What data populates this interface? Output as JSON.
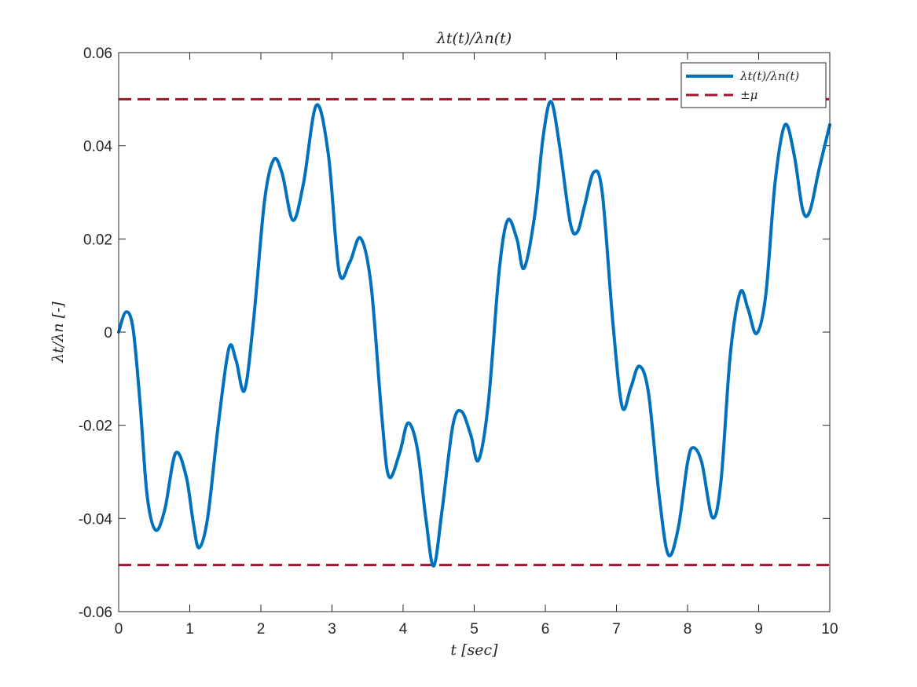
{
  "chart_data": {
    "type": "line",
    "title": "λt(t)/λn(t)",
    "xlabel": "t [sec]",
    "ylabel": "λt/λn [-]",
    "xlim": [
      0,
      10
    ],
    "ylim": [
      -0.06,
      0.06
    ],
    "x_ticks": [
      0,
      1,
      2,
      3,
      4,
      5,
      6,
      7,
      8,
      9,
      10
    ],
    "y_ticks": [
      0.06,
      0.04,
      0.02,
      0,
      -0.02,
      -0.04,
      -0.06
    ],
    "y_tick_labels": [
      "0.06",
      "0.04",
      "0.02",
      "0",
      "-0.02",
      "-0.04",
      "-0.06"
    ],
    "grid": false,
    "legend_position": "top-right",
    "series": [
      {
        "name": "λt(t)/λn(t)",
        "color": "#0072bd",
        "style": "solid",
        "x": [
          0,
          0.1,
          0.2,
          0.3,
          0.4,
          0.52,
          0.65,
          0.8,
          0.95,
          1.05,
          1.13,
          1.25,
          1.4,
          1.55,
          1.65,
          1.77,
          1.9,
          2.05,
          2.18,
          2.3,
          2.45,
          2.6,
          2.78,
          2.95,
          3.1,
          3.25,
          3.4,
          3.55,
          3.7,
          3.8,
          3.95,
          4.07,
          4.2,
          4.32,
          4.43,
          4.55,
          4.7,
          4.82,
          4.95,
          5.06,
          5.2,
          5.35,
          5.47,
          5.6,
          5.7,
          5.85,
          5.97,
          6.08,
          6.2,
          6.35,
          6.45,
          6.55,
          6.68,
          6.8,
          6.95,
          7.08,
          7.2,
          7.32,
          7.45,
          7.6,
          7.73,
          7.87,
          8.0,
          8.08,
          8.2,
          8.35,
          8.47,
          8.6,
          8.74,
          8.85,
          8.97,
          9.1,
          9.23,
          9.37,
          9.5,
          9.62,
          9.72,
          9.85,
          10.0
        ],
        "y": [
          0.0,
          0.0043,
          0.001,
          -0.015,
          -0.035,
          -0.0425,
          -0.038,
          -0.026,
          -0.031,
          -0.041,
          -0.0463,
          -0.04,
          -0.02,
          -0.0035,
          -0.006,
          -0.0125,
          0.003,
          0.028,
          0.037,
          0.034,
          0.024,
          0.032,
          0.0487,
          0.038,
          0.013,
          0.015,
          0.0202,
          0.01,
          -0.018,
          -0.031,
          -0.026,
          -0.0195,
          -0.025,
          -0.04,
          -0.0502,
          -0.038,
          -0.02,
          -0.017,
          -0.022,
          -0.0275,
          -0.015,
          0.013,
          0.024,
          0.02,
          0.0137,
          0.025,
          0.042,
          0.0495,
          0.04,
          0.0235,
          0.0215,
          0.027,
          0.0343,
          0.03,
          0.002,
          -0.016,
          -0.012,
          -0.0073,
          -0.013,
          -0.035,
          -0.0478,
          -0.042,
          -0.028,
          -0.0248,
          -0.028,
          -0.0398,
          -0.032,
          -0.005,
          0.0085,
          0.005,
          -0.0003,
          0.008,
          0.032,
          0.0445,
          0.038,
          0.0262,
          0.026,
          0.035,
          0.0445
        ]
      },
      {
        "name": "±μ",
        "color": "#a2142f",
        "style": "dashed",
        "lines": [
          0.05,
          -0.05
        ]
      }
    ]
  }
}
